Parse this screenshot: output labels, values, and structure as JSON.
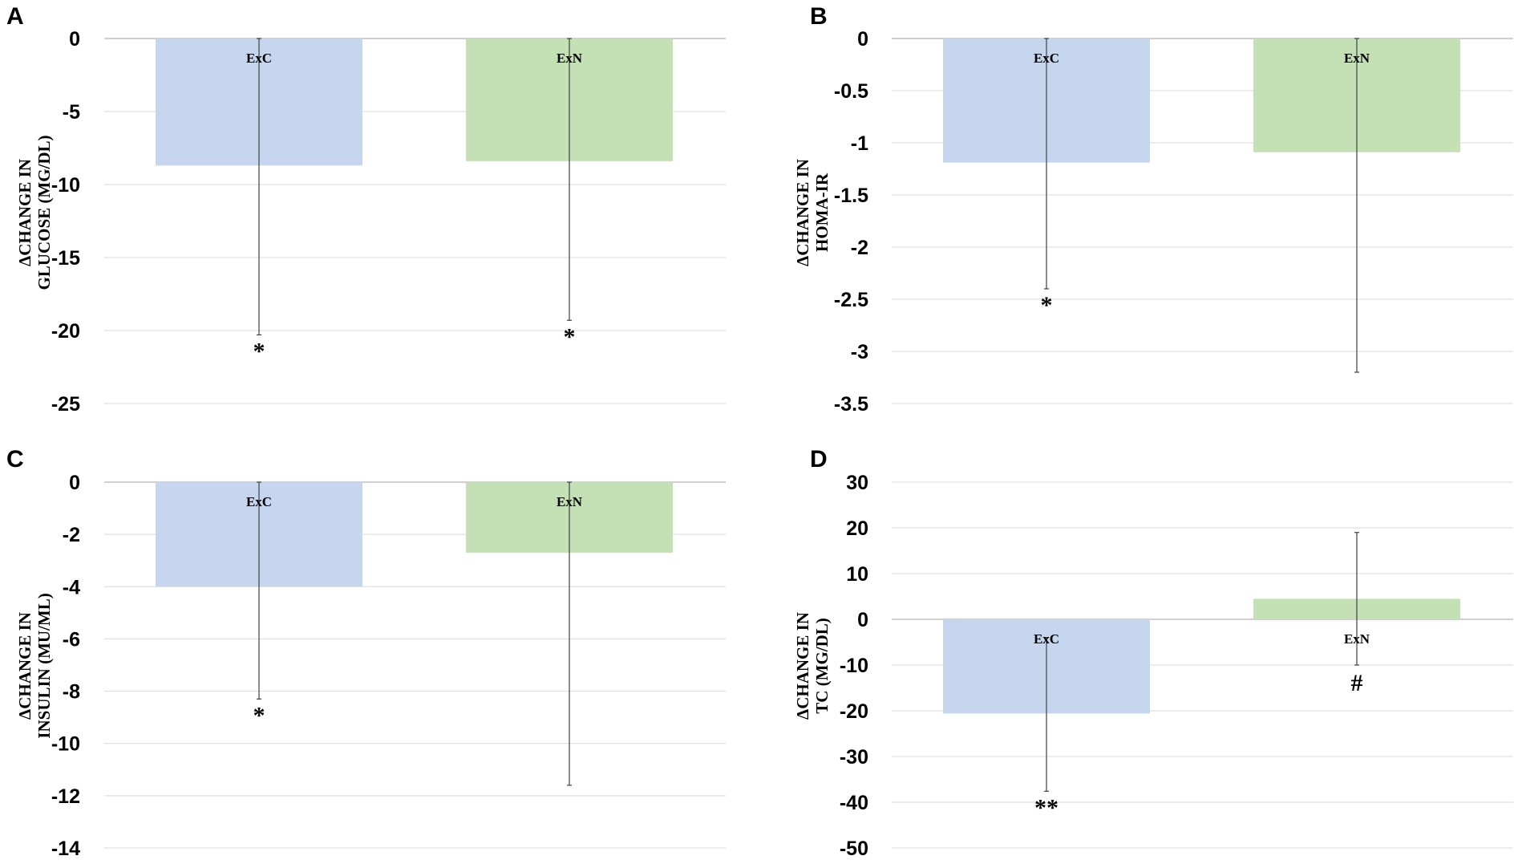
{
  "colors": {
    "ExC": "#c5d6ee",
    "ExN": "#c4e1b5"
  },
  "chart_data": [
    {
      "panel": "A",
      "type": "bar",
      "ylabel": [
        "ΔCHANGE IN",
        "GLUCOSE (MG/DL)"
      ],
      "ylim": [
        -25,
        0
      ],
      "yticks": [
        0,
        -5,
        -10,
        -15,
        -20,
        -25
      ],
      "categories": [
        "ExC",
        "ExN"
      ],
      "values": [
        -8.7,
        -8.4
      ],
      "error_low": [
        -20.3,
        -19.3
      ],
      "error_high": [
        0,
        0
      ],
      "annotations": [
        "*",
        "*"
      ]
    },
    {
      "panel": "B",
      "type": "bar",
      "ylabel": [
        "ΔCHANGE IN",
        "HOMA-IR"
      ],
      "ylim": [
        -3.5,
        0
      ],
      "yticks": [
        0,
        -0.5,
        -1,
        -1.5,
        -2,
        -2.5,
        -3,
        -3.5
      ],
      "categories": [
        "ExC",
        "ExN"
      ],
      "values": [
        -1.19,
        -1.09
      ],
      "error_low": [
        -2.4,
        -3.2
      ],
      "error_high": [
        0,
        0
      ],
      "annotations": [
        "*",
        ""
      ]
    },
    {
      "panel": "C",
      "type": "bar",
      "ylabel": [
        "ΔCHANGE IN",
        "INSULIN (MU/ML)"
      ],
      "ylim": [
        -14,
        0
      ],
      "yticks": [
        0,
        -2,
        -4,
        -6,
        -8,
        -10,
        -12,
        -14
      ],
      "categories": [
        "ExC",
        "ExN"
      ],
      "values": [
        -4.0,
        -2.7
      ],
      "error_low": [
        -8.3,
        -11.6
      ],
      "error_high": [
        0,
        0
      ],
      "annotations": [
        "*",
        ""
      ]
    },
    {
      "panel": "D",
      "type": "bar",
      "ylabel": [
        "ΔCHANGE IN",
        "TC (MG/DL)"
      ],
      "ylim": [
        -50,
        30
      ],
      "yticks": [
        30,
        20,
        10,
        0,
        -10,
        -20,
        -30,
        -40,
        -50
      ],
      "categories": [
        "ExC",
        "ExN"
      ],
      "values": [
        -20.6,
        4.5
      ],
      "error_low": [
        -37.6,
        -10.0
      ],
      "error_high": [
        -4.0,
        19.0
      ],
      "annotations": [
        "**",
        "#"
      ]
    }
  ]
}
